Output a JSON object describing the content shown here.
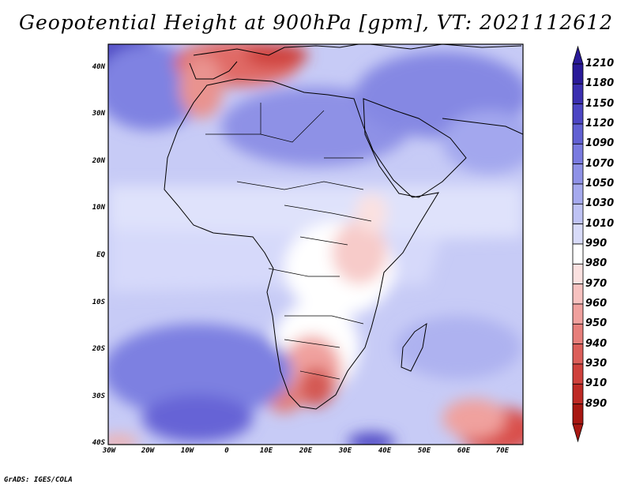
{
  "title": "Geopotential Height at 900hPa [gpm], VT: 2021112612",
  "credit": "GrADS: IGES/COLA",
  "map": {
    "type": "filled-contour-map",
    "variable": "Geopotential Height",
    "level": "900hPa",
    "units": "gpm",
    "valid_time": "2021112612",
    "lat_labels": [
      "40N",
      "30N",
      "20N",
      "10N",
      "EQ",
      "10S",
      "20S",
      "30S",
      "40S"
    ],
    "lon_labels": [
      "30W",
      "20W",
      "10W",
      "0",
      "10E",
      "20E",
      "30E",
      "40E",
      "50E",
      "60E",
      "70E"
    ],
    "lon_range": [
      -30,
      75
    ],
    "lat_range": [
      -40,
      45
    ]
  },
  "colorbar": {
    "levels": [
      "1210",
      "1180",
      "1150",
      "1120",
      "1090",
      "1070",
      "1050",
      "1030",
      "1010",
      "990",
      "980",
      "970",
      "960",
      "950",
      "940",
      "930",
      "910",
      "890"
    ],
    "colors": [
      "#2a1a99",
      "#3b2fb0",
      "#4d46c4",
      "#6261d3",
      "#7a7be0",
      "#8f92e7",
      "#a6aaee",
      "#bfc3f4",
      "#d8dbf9",
      "#ffffff",
      "#fbe1e0",
      "#f7c2c0",
      "#f0a19e",
      "#e77f7b",
      "#dc5f5a",
      "#cf413c",
      "#be2a25",
      "#a81812"
    ]
  },
  "colors": {
    "land_outline": "#000000",
    "ocean_default": "#cfd3f7"
  }
}
